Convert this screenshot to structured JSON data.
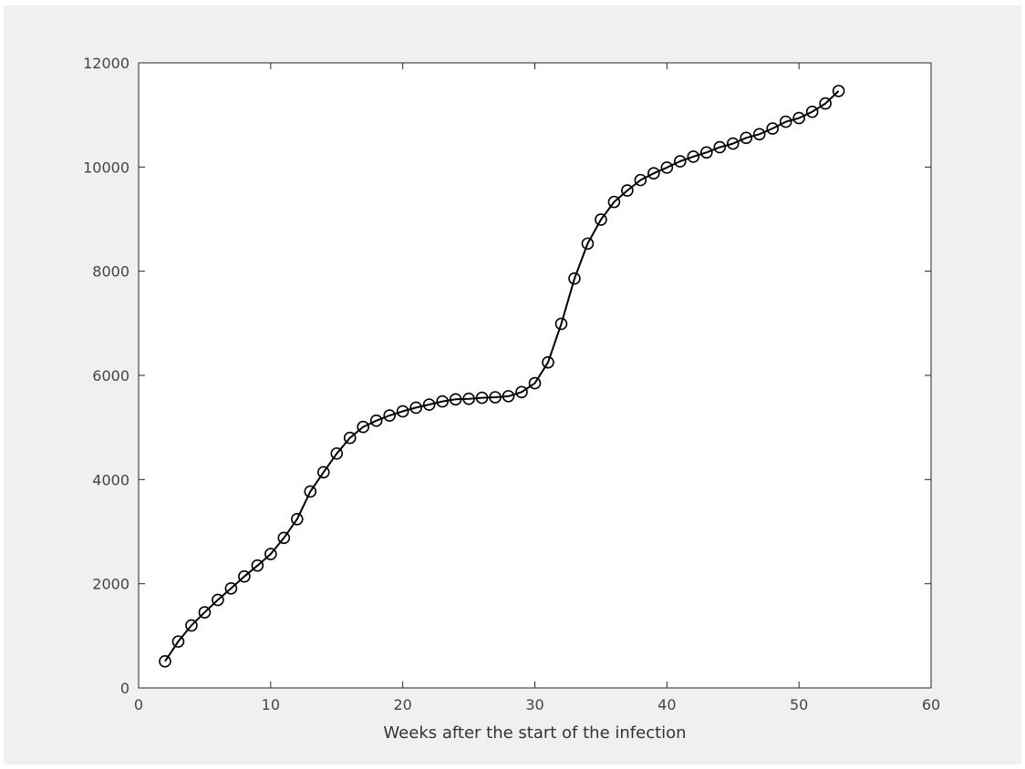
{
  "chart_data": {
    "type": "line",
    "title": "",
    "xlabel": "Weeks after the start of the infection",
    "ylabel": "",
    "xlim": [
      0,
      60
    ],
    "ylim": [
      0,
      12000
    ],
    "x_ticks": [
      0,
      10,
      20,
      30,
      40,
      50,
      60
    ],
    "y_ticks": [
      0,
      2000,
      4000,
      6000,
      8000,
      10000,
      12000
    ],
    "x_tick_labels": [
      "0",
      "10",
      "20",
      "30",
      "40",
      "50",
      "60"
    ],
    "y_tick_labels": [
      "0",
      "2000",
      "4000",
      "6000",
      "8000",
      "10000",
      "12000"
    ],
    "grid": false,
    "marker": "circle",
    "line_color": "#000000",
    "background_color": "#ffffff",
    "figure_color": "#f0f0f0",
    "series": [
      {
        "x": [
          2,
          3,
          4,
          5,
          6,
          7,
          8,
          9,
          10,
          11,
          12,
          13,
          14,
          15,
          16,
          17,
          18,
          19,
          20,
          21,
          22,
          23,
          24,
          25,
          26,
          27,
          28,
          29,
          30,
          31,
          32,
          33,
          34,
          35,
          36,
          37,
          38,
          39,
          40,
          41,
          42,
          43,
          44,
          45,
          46,
          47,
          48,
          49,
          50,
          51,
          52,
          53
        ],
        "values": [
          510,
          890,
          1200,
          1450,
          1690,
          1910,
          2140,
          2350,
          2570,
          2880,
          3240,
          3770,
          4140,
          4500,
          4800,
          5010,
          5130,
          5230,
          5310,
          5380,
          5440,
          5500,
          5540,
          5550,
          5570,
          5580,
          5600,
          5680,
          5850,
          6250,
          6990,
          7860,
          8530,
          8990,
          9330,
          9550,
          9750,
          9880,
          9990,
          10110,
          10200,
          10280,
          10380,
          10450,
          10560,
          10630,
          10740,
          10870,
          10940,
          11060,
          11220,
          11460
        ]
      }
    ]
  }
}
